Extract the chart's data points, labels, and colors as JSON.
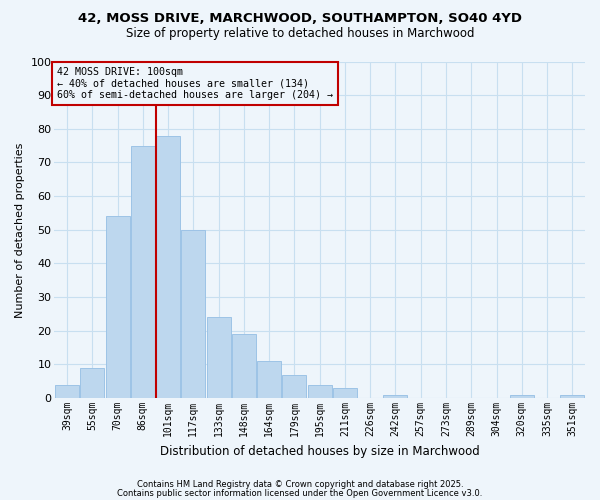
{
  "title": "42, MOSS DRIVE, MARCHWOOD, SOUTHAMPTON, SO40 4YD",
  "subtitle": "Size of property relative to detached houses in Marchwood",
  "xlabel": "Distribution of detached houses by size in Marchwood",
  "ylabel": "Number of detached properties",
  "bin_labels": [
    "39sqm",
    "55sqm",
    "70sqm",
    "86sqm",
    "101sqm",
    "117sqm",
    "133sqm",
    "148sqm",
    "164sqm",
    "179sqm",
    "195sqm",
    "211sqm",
    "226sqm",
    "242sqm",
    "257sqm",
    "273sqm",
    "289sqm",
    "304sqm",
    "320sqm",
    "335sqm",
    "351sqm"
  ],
  "bar_heights": [
    4,
    9,
    54,
    75,
    78,
    50,
    24,
    19,
    11,
    7,
    4,
    3,
    0,
    1,
    0,
    0,
    0,
    0,
    1,
    0,
    1
  ],
  "bar_color": "#bdd7ee",
  "bar_edgecolor": "#9dc3e6",
  "vline_color": "#c00000",
  "annotation_line1": "42 MOSS DRIVE: 100sqm",
  "annotation_line2": "← 40% of detached houses are smaller (134)",
  "annotation_line3": "60% of semi-detached houses are larger (204) →",
  "annotation_box_color": "#c00000",
  "ylim": [
    0,
    100
  ],
  "yticks": [
    0,
    10,
    20,
    30,
    40,
    50,
    60,
    70,
    80,
    90,
    100
  ],
  "grid_color": "#c8dff0",
  "bg_color": "#eef5fb",
  "footer1": "Contains HM Land Registry data © Crown copyright and database right 2025.",
  "footer2": "Contains public sector information licensed under the Open Government Licence v3.0."
}
